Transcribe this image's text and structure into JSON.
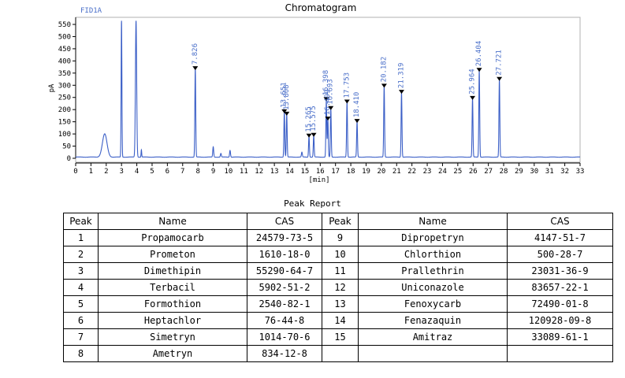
{
  "chart_data": {
    "type": "line",
    "title": "Chromatogram",
    "detector": "FID1A",
    "xlabel": "[min]",
    "ylabel": "pA",
    "xlim": [
      0,
      33
    ],
    "ylim": [
      0,
      550
    ],
    "x_ticks": [
      0,
      1,
      2,
      3,
      4,
      5,
      6,
      7,
      8,
      9,
      10,
      11,
      12,
      13,
      14,
      15,
      16,
      17,
      18,
      19,
      20,
      21,
      22,
      23,
      24,
      25,
      26,
      27,
      28,
      29,
      30,
      31,
      32,
      33
    ],
    "y_ticks": [
      0,
      50,
      100,
      150,
      200,
      250,
      300,
      350,
      400,
      450,
      500,
      550
    ],
    "grid": false,
    "series_color": "#3b5fc7",
    "labeled_peaks": [
      {
        "rt": 7.826,
        "label": "7.826",
        "height": 362
      },
      {
        "rt": 13.651,
        "label": "13.651",
        "height": 185
      },
      {
        "rt": 13.808,
        "label": "13.808",
        "height": 175
      },
      {
        "rt": 15.265,
        "label": "15.265",
        "height": 85
      },
      {
        "rt": 15.575,
        "label": "15.575",
        "height": 88
      },
      {
        "rt": 16.398,
        "label": "16.398",
        "height": 235
      },
      {
        "rt": 16.499,
        "label": "16.499",
        "height": 155
      },
      {
        "rt": 16.693,
        "label": "16.693",
        "height": 198
      },
      {
        "rt": 17.753,
        "label": "17.753",
        "height": 225
      },
      {
        "rt": 18.41,
        "label": "18.410",
        "height": 145
      },
      {
        "rt": 20.182,
        "label": "20.182",
        "height": 290
      },
      {
        "rt": 21.319,
        "label": "21.319",
        "height": 265
      },
      {
        "rt": 25.964,
        "label": "25.964",
        "height": 240
      },
      {
        "rt": 26.404,
        "label": "26.404",
        "height": 355
      },
      {
        "rt": 27.721,
        "label": "27.721",
        "height": 318
      }
    ],
    "unlabeled_peaks": [
      {
        "rt": 1.9,
        "height": 95,
        "width": 0.15
      },
      {
        "rt": 3.0,
        "height": 560,
        "width": 0.025
      },
      {
        "rt": 3.95,
        "height": 560,
        "width": 0.04
      },
      {
        "rt": 4.3,
        "height": 30,
        "width": 0.02
      },
      {
        "rt": 9.0,
        "height": 42,
        "width": 0.03
      },
      {
        "rt": 9.5,
        "height": 15,
        "width": 0.03
      },
      {
        "rt": 10.1,
        "height": 28,
        "width": 0.03
      },
      {
        "rt": 14.8,
        "height": 20,
        "width": 0.03
      }
    ]
  },
  "report": {
    "title": "Peak Report",
    "headers": [
      "Peak",
      "Name",
      "CAS",
      "Peak",
      "Name",
      "CAS"
    ],
    "rows": [
      [
        "1",
        "Propamocarb",
        "24579-73-5",
        "9",
        "Dipropetryn",
        "4147-51-7"
      ],
      [
        "2",
        "Prometon",
        "1610-18-0",
        "10",
        "Chlorthion",
        "500-28-7"
      ],
      [
        "3",
        "Dimethipin",
        "55290-64-7",
        "11",
        "Prallethrin",
        "23031-36-9"
      ],
      [
        "4",
        "Terbacil",
        "5902-51-2",
        "12",
        "Uniconazole",
        "83657-22-1"
      ],
      [
        "5",
        "Formothion",
        "2540-82-1",
        "13",
        "Fenoxycarb",
        "72490-01-8"
      ],
      [
        "6",
        "Heptachlor",
        "76-44-8",
        "14",
        "Fenazaquin",
        "120928-09-8"
      ],
      [
        "7",
        "Simetryn",
        "1014-70-6",
        "15",
        "Amitraz",
        "33089-61-1"
      ],
      [
        "8",
        "Ametryn",
        "834-12-8",
        "",
        "",
        ""
      ]
    ]
  }
}
